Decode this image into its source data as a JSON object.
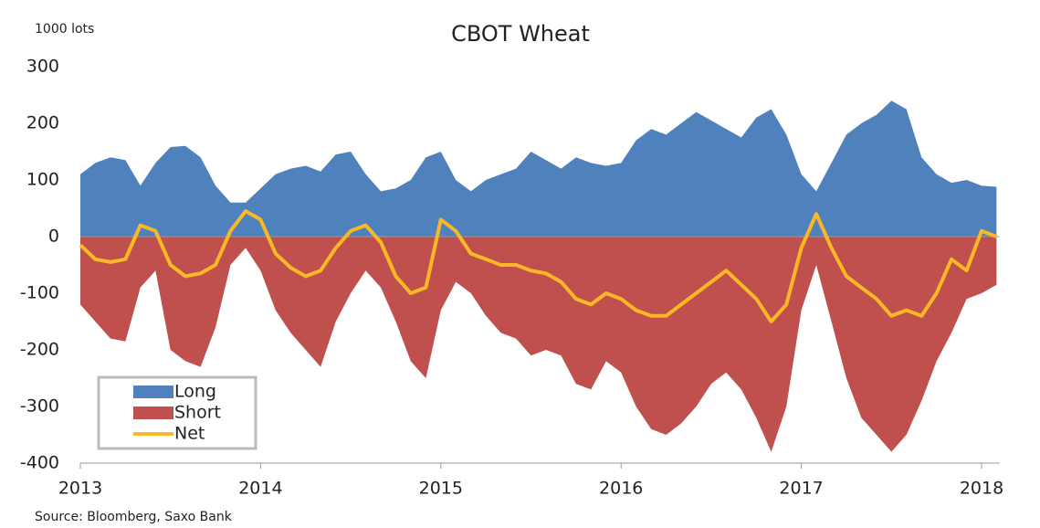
{
  "chart_data": {
    "type": "area",
    "title": "CBOT Wheat",
    "y_label": "1000 lots",
    "source": "Source: Bloomberg,  Saxo Bank",
    "x": [
      2013,
      2013.083,
      2013.167,
      2013.25,
      2013.333,
      2013.417,
      2013.5,
      2013.583,
      2013.667,
      2013.75,
      2013.833,
      2013.917,
      2014,
      2014.083,
      2014.167,
      2014.25,
      2014.333,
      2014.417,
      2014.5,
      2014.583,
      2014.667,
      2014.75,
      2014.833,
      2014.917,
      2015,
      2015.083,
      2015.167,
      2015.25,
      2015.333,
      2015.417,
      2015.5,
      2015.583,
      2015.667,
      2015.75,
      2015.833,
      2015.917,
      2016,
      2016.083,
      2016.167,
      2016.25,
      2016.333,
      2016.417,
      2016.5,
      2016.583,
      2016.667,
      2016.75,
      2016.833,
      2016.917,
      2017,
      2017.083,
      2017.167,
      2017.25,
      2017.333,
      2017.417,
      2017.5,
      2017.583,
      2017.667,
      2017.75,
      2017.833,
      2017.917,
      2018,
      2018.083
    ],
    "series": [
      {
        "name": "Long",
        "color": "#4f81bd",
        "kind": "area",
        "values": [
          110,
          130,
          140,
          135,
          90,
          130,
          158,
          160,
          140,
          90,
          60,
          60,
          85,
          110,
          120,
          125,
          115,
          145,
          150,
          110,
          80,
          85,
          100,
          140,
          150,
          100,
          80,
          100,
          110,
          120,
          150,
          135,
          120,
          140,
          130,
          125,
          130,
          170,
          190,
          180,
          200,
          220,
          205,
          190,
          175,
          210,
          225,
          180,
          110,
          80,
          130,
          180,
          200,
          215,
          240,
          225,
          140,
          110,
          95,
          100,
          90,
          88
        ]
      },
      {
        "name": "Short",
        "color": "#c0504d",
        "kind": "area",
        "values": [
          -120,
          -150,
          -180,
          -185,
          -90,
          -60,
          -200,
          -220,
          -230,
          -160,
          -50,
          -20,
          -60,
          -130,
          -170,
          -200,
          -230,
          -150,
          -100,
          -60,
          -90,
          -150,
          -220,
          -250,
          -130,
          -80,
          -100,
          -140,
          -170,
          -180,
          -210,
          -200,
          -210,
          -260,
          -270,
          -220,
          -240,
          -300,
          -340,
          -350,
          -330,
          -300,
          -260,
          -240,
          -270,
          -320,
          -380,
          -300,
          -130,
          -50,
          -150,
          -250,
          -320,
          -350,
          -380,
          -350,
          -290,
          -220,
          -170,
          -110,
          -100,
          -85
        ]
      },
      {
        "name": "Net",
        "color": "#f9b824",
        "kind": "line",
        "values": [
          -15,
          -40,
          -45,
          -40,
          20,
          10,
          -50,
          -70,
          -65,
          -50,
          10,
          45,
          30,
          -30,
          -55,
          -70,
          -60,
          -20,
          10,
          20,
          -10,
          -70,
          -100,
          -90,
          30,
          10,
          -30,
          -40,
          -50,
          -50,
          -60,
          -65,
          -80,
          -110,
          -120,
          -100,
          -110,
          -130,
          -140,
          -140,
          -120,
          -100,
          -80,
          -60,
          -85,
          -110,
          -150,
          -120,
          -20,
          40,
          -20,
          -70,
          -90,
          -110,
          -140,
          -130,
          -140,
          -100,
          -40,
          -60,
          10,
          0
        ]
      }
    ],
    "xlim": [
      2013,
      2018.1
    ],
    "xticks": [
      2013,
      2014,
      2015,
      2016,
      2017,
      2018
    ],
    "ylim": [
      -400,
      300
    ],
    "yticks": [
      -400,
      -300,
      -200,
      -100,
      0,
      100,
      200,
      300
    ],
    "legend": "lower left"
  }
}
